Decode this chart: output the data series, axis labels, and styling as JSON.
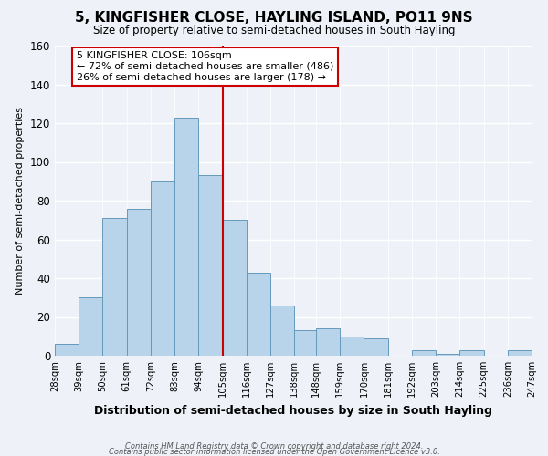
{
  "title": "5, KINGFISHER CLOSE, HAYLING ISLAND, PO11 9NS",
  "subtitle": "Size of property relative to semi-detached houses in South Hayling",
  "xlabel": "Distribution of semi-detached houses by size in South Hayling",
  "ylabel": "Number of semi-detached properties",
  "bar_labels": [
    "28sqm",
    "39sqm",
    "50sqm",
    "61sqm",
    "72sqm",
    "83sqm",
    "94sqm",
    "105sqm",
    "116sqm",
    "127sqm",
    "138sqm",
    "148sqm",
    "159sqm",
    "170sqm",
    "181sqm",
    "192sqm",
    "203sqm",
    "214sqm",
    "225sqm",
    "236sqm",
    "247sqm"
  ],
  "bar_left_edges": [
    28,
    39,
    50,
    61,
    72,
    83,
    94,
    105,
    116,
    127,
    138,
    148,
    159,
    170,
    181,
    192,
    203,
    214,
    225,
    236
  ],
  "bar_widths": [
    11,
    11,
    11,
    11,
    11,
    11,
    11,
    11,
    11,
    11,
    10,
    11,
    11,
    11,
    11,
    11,
    11,
    11,
    11,
    11
  ],
  "bar_values": [
    6,
    30,
    71,
    76,
    90,
    123,
    93,
    70,
    43,
    26,
    13,
    14,
    10,
    9,
    0,
    3,
    1,
    3,
    0,
    3
  ],
  "bar_color": "#b8d4ea",
  "bar_edge_color": "#6699bb",
  "property_line_x": 105,
  "property_line_color": "#cc0000",
  "annotation_title": "5 KINGFISHER CLOSE: 106sqm",
  "annotation_smaller": "← 72% of semi-detached houses are smaller (486)",
  "annotation_larger": "26% of semi-detached houses are larger (178) →",
  "annotation_box_color": "#ffffff",
  "annotation_box_edge": "#cc0000",
  "ylim": [
    0,
    160
  ],
  "xlim_left": 28,
  "xlim_right": 247,
  "background_color": "#eef2f8",
  "grid_color": "#ffffff",
  "footer1": "Contains HM Land Registry data © Crown copyright and database right 2024.",
  "footer2": "Contains public sector information licensed under the Open Government Licence v3.0."
}
